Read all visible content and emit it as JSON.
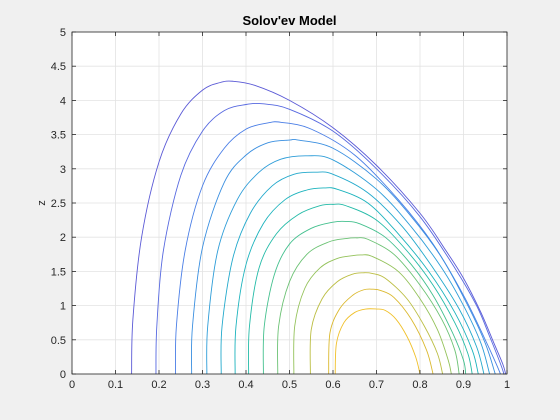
{
  "chart_data": {
    "type": "contour",
    "title": "Solov'ev Model",
    "xlabel": "",
    "ylabel": "z",
    "xlim": [
      0,
      1
    ],
    "ylim": [
      0,
      5
    ],
    "xticks": [
      "0",
      "0.1",
      "0.2",
      "0.3",
      "0.4",
      "0.5",
      "0.6",
      "0.7",
      "0.8",
      "0.9",
      "1"
    ],
    "yticks": [
      "0",
      "0.5",
      "1",
      "1.5",
      "2",
      "2.5",
      "3",
      "3.5",
      "4",
      "4.5",
      "5"
    ],
    "grid": true,
    "colormap": "parula",
    "contours": [
      {
        "color": "#5b5ad6",
        "x": [
          0.137,
          0.14,
          0.16,
          0.2,
          0.25,
          0.3,
          0.34,
          0.37,
          0.42,
          0.5,
          0.6,
          0.7,
          0.8,
          0.86,
          0.9,
          0.94,
          0.97,
          0.99,
          0.997
        ],
        "z": [
          0,
          0.8,
          2.0,
          3.1,
          3.8,
          4.15,
          4.26,
          4.28,
          4.22,
          4.0,
          3.6,
          3.05,
          2.35,
          1.8,
          1.4,
          0.9,
          0.45,
          0.15,
          0
        ]
      },
      {
        "color": "#5769e0",
        "x": [
          0.193,
          0.195,
          0.21,
          0.25,
          0.3,
          0.35,
          0.4,
          0.44,
          0.5,
          0.6,
          0.7,
          0.8,
          0.88,
          0.93,
          0.96,
          0.985,
          0.993
        ],
        "z": [
          0,
          0.7,
          1.8,
          2.9,
          3.55,
          3.85,
          3.94,
          3.95,
          3.87,
          3.55,
          3.0,
          2.3,
          1.55,
          1.0,
          0.55,
          0.15,
          0
        ]
      },
      {
        "color": "#4a7ee6",
        "x": [
          0.238,
          0.24,
          0.26,
          0.3,
          0.35,
          0.4,
          0.45,
          0.48,
          0.55,
          0.65,
          0.75,
          0.83,
          0.9,
          0.95,
          0.975,
          0.985
        ],
        "z": [
          0,
          0.7,
          1.8,
          2.75,
          3.3,
          3.58,
          3.67,
          3.68,
          3.58,
          3.2,
          2.55,
          1.9,
          1.15,
          0.5,
          0.15,
          0
        ]
      },
      {
        "color": "#3a8fe0",
        "x": [
          0.275,
          0.277,
          0.3,
          0.35,
          0.4,
          0.45,
          0.5,
          0.52,
          0.6,
          0.7,
          0.78,
          0.85,
          0.91,
          0.95,
          0.973
        ],
        "z": [
          0,
          0.7,
          1.85,
          2.8,
          3.2,
          3.38,
          3.42,
          3.42,
          3.3,
          2.85,
          2.3,
          1.7,
          1.0,
          0.45,
          0
        ]
      },
      {
        "color": "#2e9dd8",
        "x": [
          0.31,
          0.312,
          0.335,
          0.38,
          0.43,
          0.48,
          0.54,
          0.6,
          0.7,
          0.78,
          0.85,
          0.9,
          0.94,
          0.96
        ],
        "z": [
          0,
          0.7,
          1.8,
          2.55,
          2.95,
          3.14,
          3.19,
          3.13,
          2.7,
          2.15,
          1.55,
          1.0,
          0.45,
          0
        ]
      },
      {
        "color": "#23a9cc",
        "x": [
          0.343,
          0.345,
          0.37,
          0.41,
          0.46,
          0.51,
          0.56,
          0.6,
          0.68,
          0.76,
          0.83,
          0.89,
          0.93,
          0.947
        ],
        "z": [
          0,
          0.7,
          1.7,
          2.35,
          2.75,
          2.92,
          2.95,
          2.92,
          2.65,
          2.15,
          1.55,
          0.95,
          0.4,
          0
        ]
      },
      {
        "color": "#1cb3bd",
        "x": [
          0.375,
          0.377,
          0.4,
          0.44,
          0.49,
          0.54,
          0.58,
          0.61,
          0.68,
          0.75,
          0.82,
          0.88,
          0.92,
          0.934
        ],
        "z": [
          0,
          0.7,
          1.6,
          2.2,
          2.55,
          2.69,
          2.72,
          2.7,
          2.5,
          2.05,
          1.5,
          0.9,
          0.35,
          0
        ]
      },
      {
        "color": "#25bba8",
        "x": [
          0.406,
          0.408,
          0.43,
          0.47,
          0.52,
          0.57,
          0.6,
          0.63,
          0.7,
          0.77,
          0.83,
          0.88,
          0.91,
          0.92
        ],
        "z": [
          0,
          0.7,
          1.55,
          2.05,
          2.33,
          2.46,
          2.48,
          2.46,
          2.25,
          1.8,
          1.3,
          0.75,
          0.3,
          0
        ]
      },
      {
        "color": "#44c08e",
        "x": [
          0.44,
          0.442,
          0.465,
          0.5,
          0.55,
          0.6,
          0.63,
          0.66,
          0.72,
          0.78,
          0.83,
          0.875,
          0.9,
          0.905
        ],
        "z": [
          0,
          0.7,
          1.45,
          1.9,
          2.13,
          2.22,
          2.23,
          2.2,
          2.0,
          1.6,
          1.15,
          0.6,
          0.2,
          0
        ]
      },
      {
        "color": "#6cc274",
        "x": [
          0.473,
          0.475,
          0.5,
          0.54,
          0.59,
          0.63,
          0.655,
          0.68,
          0.74,
          0.8,
          0.85,
          0.88,
          0.89
        ],
        "z": [
          0,
          0.7,
          1.35,
          1.75,
          1.93,
          1.98,
          1.99,
          1.97,
          1.75,
          1.3,
          0.8,
          0.35,
          0
        ]
      },
      {
        "color": "#94c25a",
        "x": [
          0.51,
          0.512,
          0.535,
          0.57,
          0.61,
          0.645,
          0.665,
          0.69,
          0.75,
          0.8,
          0.84,
          0.865,
          0.872
        ],
        "z": [
          0,
          0.7,
          1.25,
          1.55,
          1.69,
          1.73,
          1.74,
          1.72,
          1.5,
          1.1,
          0.65,
          0.2,
          0
        ]
      },
      {
        "color": "#bcbe44",
        "x": [
          0.548,
          0.55,
          0.575,
          0.61,
          0.645,
          0.67,
          0.69,
          0.72,
          0.77,
          0.81,
          0.84,
          0.852
        ],
        "z": [
          0,
          0.65,
          1.1,
          1.35,
          1.46,
          1.48,
          1.47,
          1.4,
          1.1,
          0.7,
          0.3,
          0
        ]
      },
      {
        "color": "#dbb92f",
        "x": [
          0.59,
          0.593,
          0.615,
          0.645,
          0.67,
          0.69,
          0.71,
          0.74,
          0.78,
          0.815,
          0.83
        ],
        "z": [
          0,
          0.6,
          0.95,
          1.15,
          1.23,
          1.24,
          1.22,
          1.12,
          0.8,
          0.35,
          0
        ]
      },
      {
        "color": "#f0c02a",
        "x": [
          0.605,
          0.608,
          0.625,
          0.65,
          0.675,
          0.7,
          0.72,
          0.745,
          0.77,
          0.79,
          0.8
        ],
        "z": [
          0,
          0.45,
          0.75,
          0.9,
          0.95,
          0.95,
          0.93,
          0.8,
          0.55,
          0.25,
          0
        ]
      }
    ]
  }
}
